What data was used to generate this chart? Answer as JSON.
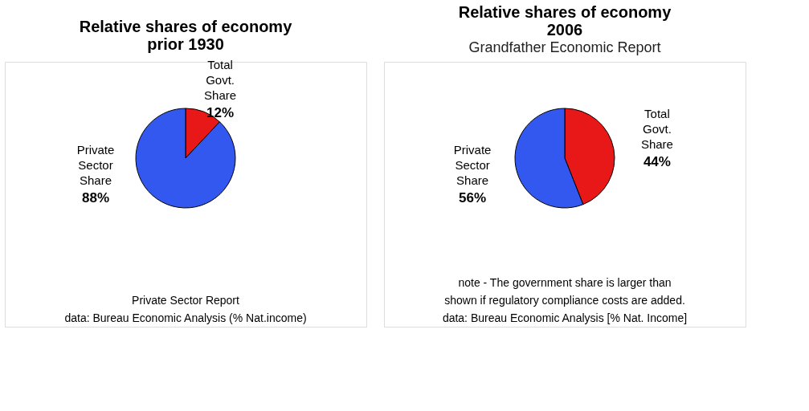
{
  "chart_data": [
    {
      "type": "pie",
      "title": "Relative shares of economy\nprior 1930",
      "categories": [
        "Total Govt. Share",
        "Private Sector Share"
      ],
      "values": [
        12,
        88
      ],
      "colors": [
        "#e81818",
        "#3358f0"
      ],
      "value_labels": [
        "12%",
        "88%"
      ],
      "legend": false,
      "annotations": [
        "Private Sector Report",
        "data: Bureau Economic Analysis (% Nat.income)"
      ]
    },
    {
      "type": "pie",
      "title": "Relative shares of economy\n2006",
      "subtitle": "Grandfather Economic Report",
      "categories": [
        "Total Govt. Share",
        "Private Sector Share"
      ],
      "values": [
        44,
        56
      ],
      "colors": [
        "#e81818",
        "#3358f0"
      ],
      "value_labels": [
        "44%",
        "56%"
      ],
      "legend": false,
      "annotations": [
        "note - The government share is larger than",
        "shown if regulatory compliance costs are added.",
        "data: Bureau Economic Analysis   [% Nat. Income]"
      ]
    }
  ]
}
